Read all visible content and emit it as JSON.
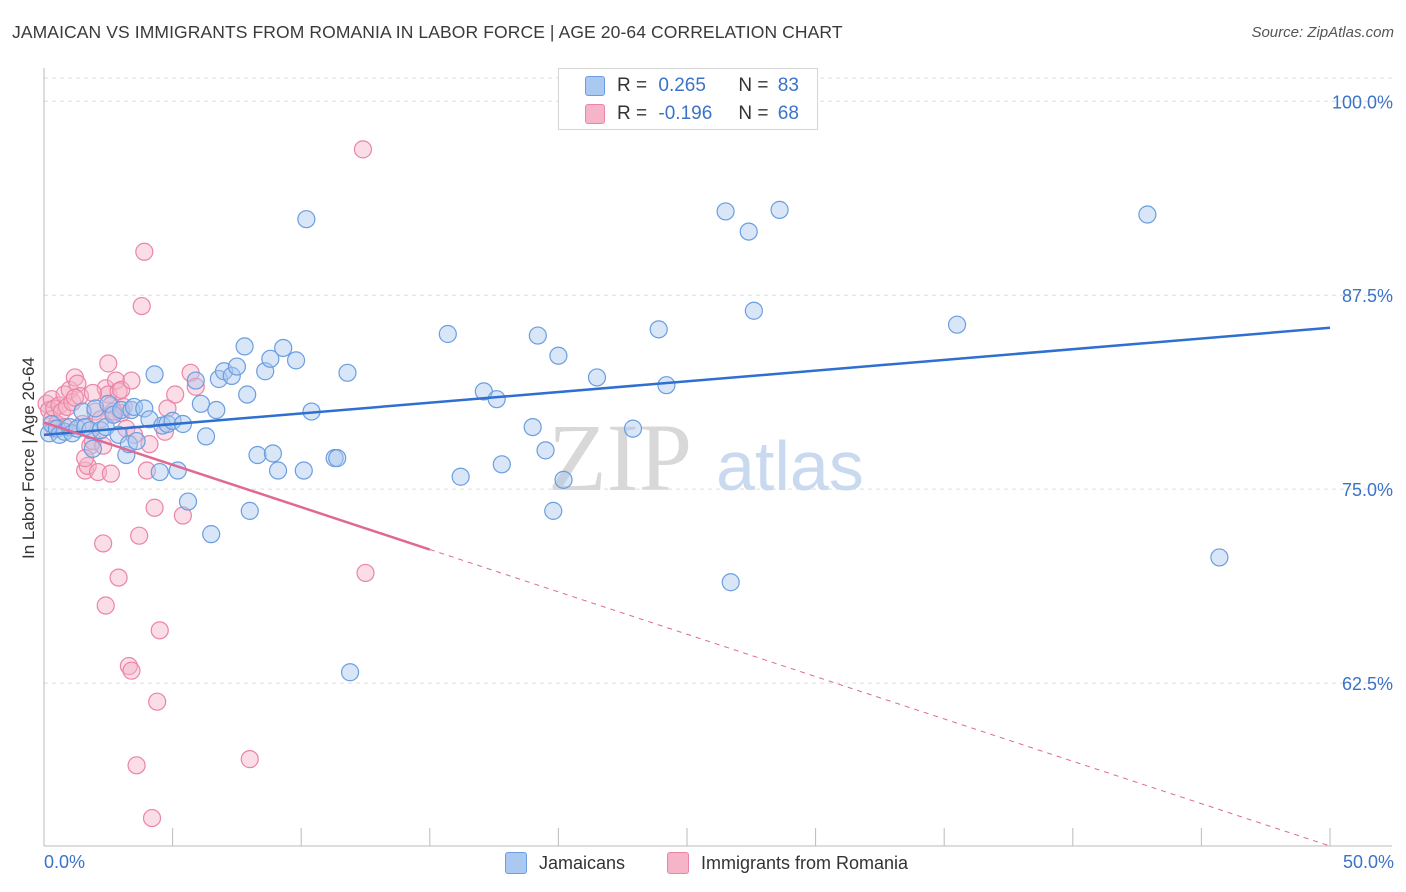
{
  "header": {
    "title": "JAMAICAN VS IMMIGRANTS FROM ROMANIA IN LABOR FORCE | AGE 20-64 CORRELATION CHART",
    "source": "Source: ZipAtlas.com"
  },
  "watermark": {
    "zip": "ZIP",
    "atlas": "atlas"
  },
  "colors": {
    "blue_fill": "#aac8f0",
    "blue_stroke": "#6a9ee0",
    "blue_line": "#2e6fcf",
    "pink_fill": "#f5b4c8",
    "pink_stroke": "#ec84a6",
    "pink_line": "#e06894",
    "tick_text": "#3b73c8",
    "grid": "#dddddd"
  },
  "legend_top": [
    {
      "r_label": "R =",
      "r_value": "0.265",
      "n_label": "N =",
      "n_value": "83",
      "series": "blue"
    },
    {
      "r_label": "R =",
      "r_value": "-0.196",
      "n_label": "N =",
      "n_value": "68",
      "series": "pink"
    }
  ],
  "legend_bottom": [
    {
      "label": "Jamaicans",
      "series": "blue"
    },
    {
      "label": "Immigrants from Romania",
      "series": "pink"
    }
  ],
  "chart_data": {
    "type": "scatter",
    "title": "JAMAICAN VS IMMIGRANTS FROM ROMANIA IN LABOR FORCE | AGE 20-64 CORRELATION CHART",
    "xlabel": "",
    "ylabel": "In Labor Force | Age 20-64",
    "xlim": [
      0,
      50
    ],
    "ylim": [
      52,
      101.5
    ],
    "x_tick_labels": [
      "0.0%",
      "50.0%"
    ],
    "y_ticks": [
      62.5,
      75.0,
      87.5,
      100.0
    ],
    "y_tick_labels": [
      "62.5%",
      "75.0%",
      "87.5%",
      "100.0%"
    ],
    "grid": true,
    "series": [
      {
        "name": "Jamaicans",
        "r": 0.265,
        "n": 83,
        "trend": {
          "x0": 0,
          "y0": 78.5,
          "x1": 50,
          "y1": 85.4,
          "dashed_from": null
        },
        "points": [
          [
            0.2,
            78.6
          ],
          [
            0.3,
            79.2
          ],
          [
            0.5,
            78.9
          ],
          [
            0.6,
            78.5
          ],
          [
            0.8,
            78.7
          ],
          [
            1.0,
            79.0
          ],
          [
            1.1,
            78.6
          ],
          [
            1.3,
            78.9
          ],
          [
            1.5,
            80.0
          ],
          [
            1.6,
            79.0
          ],
          [
            1.8,
            78.8
          ],
          [
            1.9,
            77.6
          ],
          [
            2.0,
            80.2
          ],
          [
            2.2,
            78.8
          ],
          [
            2.4,
            79.0
          ],
          [
            2.5,
            80.5
          ],
          [
            2.7,
            79.8
          ],
          [
            2.9,
            78.5
          ],
          [
            3.0,
            80.1
          ],
          [
            3.2,
            77.2
          ],
          [
            3.3,
            77.9
          ],
          [
            3.4,
            80.1
          ],
          [
            3.5,
            80.3
          ],
          [
            3.6,
            78.1
          ],
          [
            3.9,
            80.2
          ],
          [
            4.1,
            79.5
          ],
          [
            4.3,
            82.4
          ],
          [
            4.5,
            76.1
          ],
          [
            4.6,
            79.1
          ],
          [
            4.8,
            79.2
          ],
          [
            5.0,
            79.4
          ],
          [
            5.2,
            76.2
          ],
          [
            5.4,
            79.2
          ],
          [
            5.6,
            74.2
          ],
          [
            5.9,
            82.0
          ],
          [
            6.1,
            80.5
          ],
          [
            6.3,
            78.4
          ],
          [
            6.5,
            72.1
          ],
          [
            6.7,
            80.1
          ],
          [
            6.8,
            82.1
          ],
          [
            7.0,
            82.6
          ],
          [
            7.3,
            82.3
          ],
          [
            7.5,
            82.9
          ],
          [
            7.8,
            84.2
          ],
          [
            7.9,
            81.1
          ],
          [
            8.0,
            73.6
          ],
          [
            8.3,
            77.2
          ],
          [
            8.6,
            82.6
          ],
          [
            8.8,
            83.4
          ],
          [
            8.9,
            77.3
          ],
          [
            9.1,
            76.2
          ],
          [
            9.3,
            84.1
          ],
          [
            9.8,
            83.3
          ],
          [
            10.1,
            76.2
          ],
          [
            10.2,
            92.4
          ],
          [
            10.4,
            80.0
          ],
          [
            11.3,
            77.0
          ],
          [
            11.4,
            77.0
          ],
          [
            11.8,
            82.5
          ],
          [
            11.9,
            63.2
          ],
          [
            15.7,
            85.0
          ],
          [
            16.2,
            75.8
          ],
          [
            17.1,
            81.3
          ],
          [
            17.6,
            80.8
          ],
          [
            17.8,
            76.6
          ],
          [
            19.0,
            79.0
          ],
          [
            19.2,
            84.9
          ],
          [
            19.5,
            77.5
          ],
          [
            19.8,
            73.6
          ],
          [
            20.0,
            83.6
          ],
          [
            20.2,
            75.6
          ],
          [
            21.5,
            82.2
          ],
          [
            22.9,
            78.9
          ],
          [
            23.9,
            85.3
          ],
          [
            24.2,
            81.7
          ],
          [
            26.5,
            92.9
          ],
          [
            26.7,
            69.0
          ],
          [
            27.4,
            91.6
          ],
          [
            27.6,
            86.5
          ],
          [
            28.6,
            93.0
          ],
          [
            35.5,
            85.6
          ],
          [
            42.9,
            92.7
          ],
          [
            45.7,
            70.6
          ]
        ]
      },
      {
        "name": "Immigrants from Romania",
        "r": -0.196,
        "n": 68,
        "trend": {
          "x0": 0,
          "y0": 79.3,
          "x1": 50,
          "y1": 52.0,
          "dashed_from": 15
        },
        "points": [
          [
            0.1,
            80.5
          ],
          [
            0.2,
            80.1
          ],
          [
            0.3,
            80.8
          ],
          [
            0.3,
            79.5
          ],
          [
            0.4,
            80.2
          ],
          [
            0.5,
            79.2
          ],
          [
            0.6,
            80.4
          ],
          [
            0.7,
            80.0
          ],
          [
            0.8,
            81.1
          ],
          [
            0.9,
            80.3
          ],
          [
            1.0,
            81.4
          ],
          [
            1.1,
            80.6
          ],
          [
            1.2,
            82.2
          ],
          [
            1.3,
            81.8
          ],
          [
            1.4,
            81.0
          ],
          [
            1.5,
            79.2
          ],
          [
            1.6,
            76.2
          ],
          [
            1.7,
            76.5
          ],
          [
            1.8,
            77.8
          ],
          [
            1.9,
            78.1
          ],
          [
            2.0,
            80.0
          ],
          [
            2.1,
            76.1
          ],
          [
            2.2,
            79.5
          ],
          [
            2.3,
            77.8
          ],
          [
            2.4,
            81.5
          ],
          [
            2.5,
            81.1
          ],
          [
            2.6,
            80.4
          ],
          [
            2.7,
            79.8
          ],
          [
            2.8,
            82.0
          ],
          [
            2.9,
            81.3
          ],
          [
            3.0,
            79.9
          ],
          [
            3.1,
            80.3
          ],
          [
            2.3,
            71.5
          ],
          [
            2.4,
            67.5
          ],
          [
            2.5,
            83.1
          ],
          [
            2.6,
            76.0
          ],
          [
            2.7,
            80.0
          ],
          [
            2.9,
            69.3
          ],
          [
            3.0,
            81.4
          ],
          [
            3.2,
            78.9
          ],
          [
            3.3,
            63.6
          ],
          [
            3.4,
            63.3
          ],
          [
            3.5,
            78.5
          ],
          [
            3.6,
            57.2
          ],
          [
            3.7,
            72.0
          ],
          [
            3.8,
            86.8
          ],
          [
            3.9,
            90.3
          ],
          [
            4.0,
            76.2
          ],
          [
            4.1,
            77.9
          ],
          [
            4.2,
            53.8
          ],
          [
            4.3,
            73.8
          ],
          [
            4.4,
            61.3
          ],
          [
            4.5,
            65.9
          ],
          [
            4.7,
            78.7
          ],
          [
            4.8,
            80.2
          ],
          [
            5.1,
            81.1
          ],
          [
            5.4,
            73.3
          ],
          [
            5.7,
            82.5
          ],
          [
            5.9,
            81.6
          ],
          [
            8.0,
            57.6
          ],
          [
            12.4,
            96.9
          ],
          [
            12.5,
            69.6
          ],
          [
            1.6,
            77.0
          ],
          [
            1.9,
            81.2
          ],
          [
            0.8,
            79.0
          ],
          [
            1.2,
            80.9
          ],
          [
            0.4,
            78.9
          ],
          [
            3.4,
            82.0
          ]
        ]
      }
    ]
  }
}
